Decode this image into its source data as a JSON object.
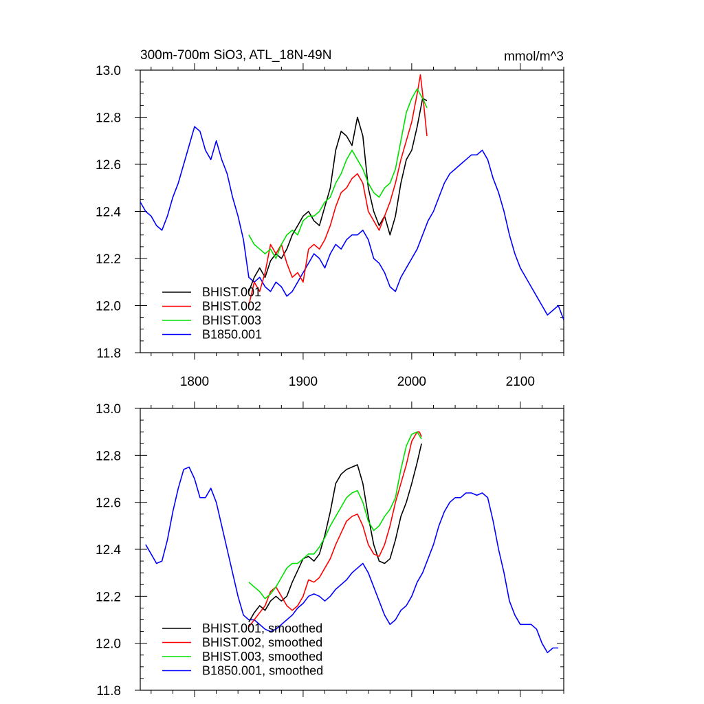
{
  "chart_data": [
    {
      "type": "line",
      "title": "300m-700m SiO3, ATL_18N-49N",
      "units_label": "mmol/m^3",
      "xlim": [
        1750,
        2140
      ],
      "ylim": [
        11.8,
        13.0
      ],
      "x_ticks": [
        1800,
        1900,
        2000,
        2100
      ],
      "x_tick_labels": [
        "1800",
        "1900",
        "2000",
        "2100"
      ],
      "y_ticks": [
        11.8,
        12.0,
        12.2,
        12.4,
        12.6,
        12.8,
        13.0
      ],
      "y_tick_labels": [
        "11.8",
        "12.0",
        "12.2",
        "12.4",
        "12.6",
        "12.8",
        "13.0"
      ],
      "legend_position": "bottom-left",
      "series": [
        {
          "name": "BHIST.001",
          "color": "#000000",
          "x": [
            1850,
            1855,
            1860,
            1865,
            1870,
            1875,
            1880,
            1885,
            1890,
            1895,
            1900,
            1905,
            1910,
            1915,
            1920,
            1925,
            1930,
            1935,
            1940,
            1945,
            1950,
            1955,
            1960,
            1965,
            1970,
            1975,
            1980,
            1985,
            1990,
            1995,
            2000,
            2005,
            2010,
            2014
          ],
          "y": [
            12.06,
            12.12,
            12.16,
            12.12,
            12.19,
            12.22,
            12.2,
            12.24,
            12.3,
            12.34,
            12.38,
            12.4,
            12.36,
            12.34,
            12.42,
            12.5,
            12.66,
            12.74,
            12.72,
            12.68,
            12.8,
            12.72,
            12.5,
            12.4,
            12.34,
            12.38,
            12.3,
            12.38,
            12.52,
            12.62,
            12.66,
            12.76,
            12.88,
            12.87
          ]
        },
        {
          "name": "BHIST.002",
          "color": "#ff0000",
          "x": [
            1850,
            1855,
            1860,
            1865,
            1870,
            1875,
            1880,
            1885,
            1890,
            1895,
            1900,
            1905,
            1910,
            1915,
            1920,
            1925,
            1930,
            1935,
            1940,
            1945,
            1950,
            1955,
            1960,
            1965,
            1970,
            1975,
            1980,
            1985,
            1990,
            1995,
            2000,
            2005,
            2008,
            2010,
            2014
          ],
          "y": [
            12.0,
            12.1,
            12.06,
            12.14,
            12.26,
            12.22,
            12.26,
            12.18,
            12.12,
            12.14,
            12.1,
            12.24,
            12.26,
            12.24,
            12.28,
            12.34,
            12.42,
            12.48,
            12.5,
            12.54,
            12.56,
            12.52,
            12.4,
            12.36,
            12.32,
            12.38,
            12.44,
            12.52,
            12.62,
            12.7,
            12.78,
            12.9,
            12.98,
            12.9,
            12.72
          ]
        },
        {
          "name": "BHIST.003",
          "color": "#00e000",
          "x": [
            1850,
            1855,
            1860,
            1865,
            1870,
            1875,
            1880,
            1885,
            1890,
            1895,
            1900,
            1905,
            1910,
            1915,
            1920,
            1925,
            1930,
            1935,
            1940,
            1945,
            1950,
            1955,
            1960,
            1965,
            1970,
            1975,
            1980,
            1985,
            1990,
            1995,
            2000,
            2005,
            2010,
            2014
          ],
          "y": [
            12.3,
            12.26,
            12.24,
            12.22,
            12.24,
            12.2,
            12.26,
            12.3,
            12.32,
            12.3,
            12.36,
            12.38,
            12.38,
            12.4,
            12.44,
            12.46,
            12.52,
            12.56,
            12.62,
            12.66,
            12.62,
            12.58,
            12.52,
            12.48,
            12.46,
            12.5,
            12.52,
            12.58,
            12.7,
            12.82,
            12.88,
            12.92,
            12.88,
            12.84
          ]
        },
        {
          "name": "B1850.001",
          "color": "#0000ff",
          "x": [
            1750,
            1755,
            1760,
            1765,
            1770,
            1775,
            1780,
            1785,
            1790,
            1795,
            1800,
            1805,
            1810,
            1815,
            1820,
            1825,
            1830,
            1835,
            1840,
            1845,
            1850,
            1855,
            1860,
            1865,
            1870,
            1875,
            1880,
            1885,
            1890,
            1895,
            1900,
            1905,
            1910,
            1915,
            1920,
            1925,
            1930,
            1935,
            1940,
            1945,
            1950,
            1955,
            1960,
            1965,
            1970,
            1975,
            1980,
            1985,
            1990,
            1995,
            2000,
            2005,
            2010,
            2015,
            2020,
            2025,
            2030,
            2035,
            2040,
            2045,
            2050,
            2055,
            2060,
            2065,
            2070,
            2075,
            2080,
            2085,
            2090,
            2095,
            2100,
            2105,
            2110,
            2115,
            2120,
            2125,
            2130,
            2135,
            2140
          ],
          "y": [
            12.44,
            12.4,
            12.38,
            12.34,
            12.32,
            12.38,
            12.46,
            12.52,
            12.6,
            12.68,
            12.76,
            12.74,
            12.66,
            12.62,
            12.7,
            12.62,
            12.56,
            12.46,
            12.38,
            12.28,
            12.12,
            12.1,
            12.12,
            12.08,
            12.06,
            12.1,
            12.08,
            12.04,
            12.06,
            12.1,
            12.14,
            12.18,
            12.22,
            12.2,
            12.16,
            12.22,
            12.26,
            12.24,
            12.28,
            12.3,
            12.3,
            12.32,
            12.28,
            12.2,
            12.18,
            12.14,
            12.08,
            12.06,
            12.12,
            12.16,
            12.2,
            12.24,
            12.3,
            12.36,
            12.4,
            12.46,
            12.52,
            12.56,
            12.58,
            12.6,
            12.62,
            12.64,
            12.64,
            12.66,
            12.62,
            12.54,
            12.48,
            12.4,
            12.3,
            12.22,
            12.16,
            12.12,
            12.08,
            12.04,
            12.0,
            11.96,
            11.98,
            12.0,
            11.94
          ]
        }
      ]
    },
    {
      "type": "line",
      "title": "",
      "units_label": "",
      "xlim": [
        1750,
        2140
      ],
      "ylim": [
        11.8,
        13.0
      ],
      "x_ticks": [
        1800,
        1900,
        2000,
        2100
      ],
      "x_tick_labels": [],
      "y_ticks": [
        11.8,
        12.0,
        12.2,
        12.4,
        12.6,
        12.8,
        13.0
      ],
      "y_tick_labels": [
        "11.8",
        "12.0",
        "12.2",
        "12.4",
        "12.6",
        "12.8",
        "13.0"
      ],
      "legend_position": "bottom-left",
      "series": [
        {
          "name": "BHIST.001, smoothed",
          "color": "#000000",
          "x": [
            1850,
            1855,
            1860,
            1865,
            1870,
            1875,
            1880,
            1885,
            1890,
            1895,
            1900,
            1905,
            1910,
            1915,
            1920,
            1925,
            1930,
            1935,
            1940,
            1945,
            1950,
            1955,
            1960,
            1965,
            1970,
            1975,
            1980,
            1985,
            1990,
            1995,
            2000,
            2005,
            2009
          ],
          "y": [
            12.09,
            12.13,
            12.16,
            12.14,
            12.18,
            12.2,
            12.18,
            12.2,
            12.26,
            12.31,
            12.36,
            12.37,
            12.35,
            12.38,
            12.46,
            12.56,
            12.68,
            12.72,
            12.74,
            12.75,
            12.76,
            12.68,
            12.54,
            12.42,
            12.35,
            12.34,
            12.36,
            12.44,
            12.54,
            12.6,
            12.68,
            12.77,
            12.85
          ]
        },
        {
          "name": "BHIST.002, smoothed",
          "color": "#ff0000",
          "x": [
            1850,
            1855,
            1860,
            1865,
            1870,
            1875,
            1880,
            1885,
            1890,
            1895,
            1900,
            1905,
            1910,
            1915,
            1920,
            1925,
            1930,
            1935,
            1940,
            1945,
            1950,
            1955,
            1960,
            1965,
            1970,
            1975,
            1980,
            1985,
            1990,
            1995,
            2000,
            2005,
            2007,
            2009
          ],
          "y": [
            12.07,
            12.1,
            12.13,
            12.16,
            12.22,
            12.24,
            12.2,
            12.16,
            12.14,
            12.16,
            12.2,
            12.27,
            12.26,
            12.28,
            12.32,
            12.36,
            12.42,
            12.47,
            12.52,
            12.54,
            12.55,
            12.5,
            12.42,
            12.38,
            12.37,
            12.42,
            12.5,
            12.6,
            12.68,
            12.76,
            12.86,
            12.9,
            12.9,
            12.88
          ]
        },
        {
          "name": "BHIST.003, smoothed",
          "color": "#00e000",
          "x": [
            1850,
            1855,
            1860,
            1865,
            1870,
            1875,
            1880,
            1885,
            1890,
            1895,
            1900,
            1905,
            1910,
            1915,
            1920,
            1925,
            1930,
            1935,
            1940,
            1945,
            1950,
            1955,
            1960,
            1965,
            1970,
            1975,
            1980,
            1985,
            1990,
            1995,
            2000,
            2005,
            2009
          ],
          "y": [
            12.26,
            12.24,
            12.22,
            12.19,
            12.21,
            12.24,
            12.28,
            12.32,
            12.34,
            12.34,
            12.36,
            12.38,
            12.38,
            12.41,
            12.45,
            12.5,
            12.54,
            12.58,
            12.62,
            12.64,
            12.65,
            12.6,
            12.52,
            12.48,
            12.5,
            12.54,
            12.57,
            12.62,
            12.74,
            12.84,
            12.89,
            12.9,
            12.87
          ]
        },
        {
          "name": "B1850.001, smoothed",
          "color": "#0000ff",
          "x": [
            1755,
            1760,
            1765,
            1770,
            1775,
            1780,
            1785,
            1790,
            1795,
            1800,
            1805,
            1810,
            1815,
            1820,
            1825,
            1830,
            1835,
            1840,
            1845,
            1850,
            1855,
            1860,
            1865,
            1870,
            1875,
            1880,
            1885,
            1890,
            1895,
            1900,
            1905,
            1910,
            1915,
            1920,
            1925,
            1930,
            1935,
            1940,
            1945,
            1950,
            1955,
            1960,
            1965,
            1970,
            1975,
            1980,
            1985,
            1990,
            1995,
            2000,
            2005,
            2010,
            2015,
            2020,
            2025,
            2030,
            2035,
            2040,
            2045,
            2050,
            2055,
            2060,
            2065,
            2070,
            2075,
            2080,
            2085,
            2090,
            2095,
            2100,
            2105,
            2110,
            2115,
            2120,
            2125,
            2130,
            2135
          ],
          "y": [
            12.42,
            12.38,
            12.34,
            12.35,
            12.44,
            12.56,
            12.66,
            12.74,
            12.75,
            12.7,
            12.62,
            12.62,
            12.66,
            12.6,
            12.5,
            12.4,
            12.3,
            12.2,
            12.12,
            12.1,
            12.1,
            12.08,
            12.06,
            12.05,
            12.06,
            12.08,
            12.1,
            12.12,
            12.15,
            12.17,
            12.2,
            12.21,
            12.2,
            12.18,
            12.2,
            12.23,
            12.25,
            12.27,
            12.3,
            12.32,
            12.34,
            12.3,
            12.24,
            12.18,
            12.12,
            12.08,
            12.1,
            12.14,
            12.16,
            12.2,
            12.26,
            12.3,
            12.36,
            12.42,
            12.5,
            12.56,
            12.6,
            12.62,
            12.62,
            12.64,
            12.64,
            12.63,
            12.64,
            12.62,
            12.52,
            12.4,
            12.3,
            12.18,
            12.12,
            12.08,
            12.08,
            12.08,
            12.06,
            12.0,
            11.96,
            11.98,
            11.98
          ]
        }
      ]
    }
  ]
}
